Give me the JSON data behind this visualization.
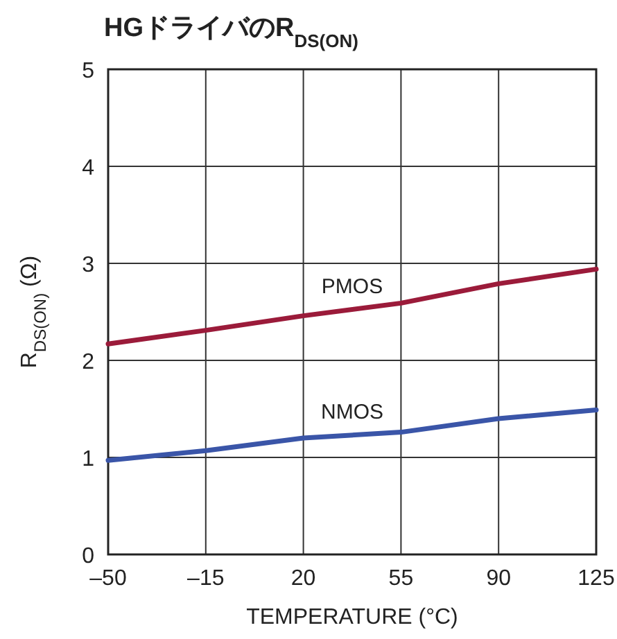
{
  "chart_data": {
    "type": "line",
    "title": "HGドライバのR$_{DS(ON)}$",
    "xlabel": "TEMPERATURE (°C)",
    "ylabel": "R$_{DS(ON)}$ (Ω)",
    "x": [
      -50,
      -15,
      20,
      55,
      90,
      125
    ],
    "series": [
      {
        "name": "PMOS",
        "color": "#9b1b3a",
        "values": [
          2.17,
          2.31,
          2.46,
          2.59,
          2.79,
          2.94
        ]
      },
      {
        "name": "NMOS",
        "color": "#3a55a8",
        "values": [
          0.97,
          1.07,
          1.2,
          1.26,
          1.4,
          1.49
        ]
      }
    ],
    "xlim": [
      -50,
      125
    ],
    "ylim": [
      0,
      5
    ],
    "xticks": [
      {
        "value": -50,
        "label": "–50"
      },
      {
        "value": -15,
        "label": "–15"
      },
      20,
      55,
      90,
      125
    ],
    "yticks": [
      0,
      1,
      2,
      3,
      4,
      5
    ],
    "grid": true
  }
}
